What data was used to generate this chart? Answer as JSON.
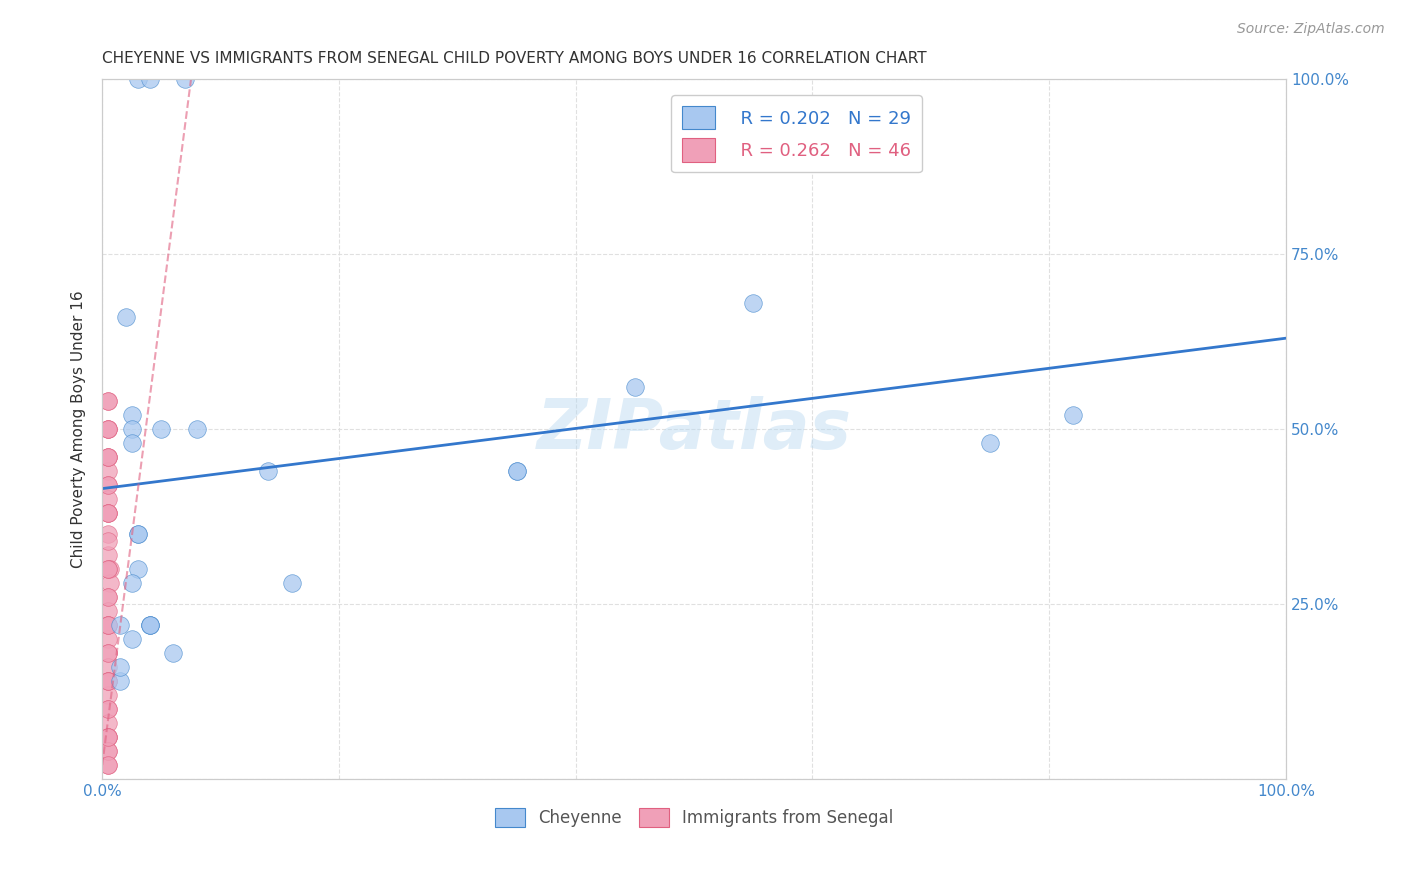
{
  "title": "CHEYENNE VS IMMIGRANTS FROM SENEGAL CHILD POVERTY AMONG BOYS UNDER 16 CORRELATION CHART",
  "source": "Source: ZipAtlas.com",
  "ylabel": "Child Poverty Among Boys Under 16",
  "xlim": [
    0,
    1.0
  ],
  "ylim": [
    0,
    1.0
  ],
  "legend_r1": "R = 0.202",
  "legend_n1": "N = 29",
  "legend_r2": "R = 0.262",
  "legend_n2": "N = 46",
  "cheyenne_color": "#a8c8f0",
  "senegal_color": "#f0a0b8",
  "cheyenne_edge_color": "#4488cc",
  "senegal_edge_color": "#e06080",
  "cheyenne_line_color": "#3377cc",
  "senegal_line_color": "#e06080",
  "watermark": "ZIPatlas",
  "cheyenne_scatter_x": [
    0.03,
    0.04,
    0.07,
    0.02,
    0.025,
    0.05,
    0.08,
    0.14,
    0.35,
    0.35,
    0.55,
    0.45,
    0.75,
    0.82,
    0.03,
    0.03,
    0.025,
    0.04,
    0.16,
    0.025,
    0.06,
    0.015,
    0.04,
    0.04,
    0.015,
    0.025,
    0.025,
    0.03,
    0.015
  ],
  "cheyenne_scatter_y": [
    1.0,
    1.0,
    1.0,
    0.66,
    0.52,
    0.5,
    0.5,
    0.44,
    0.44,
    0.44,
    0.68,
    0.56,
    0.48,
    0.52,
    0.35,
    0.3,
    0.28,
    0.22,
    0.28,
    0.2,
    0.18,
    0.14,
    0.22,
    0.22,
    0.16,
    0.5,
    0.48,
    0.35,
    0.22
  ],
  "senegal_scatter_x": [
    0.005,
    0.005,
    0.005,
    0.005,
    0.005,
    0.005,
    0.005,
    0.005,
    0.005,
    0.007,
    0.007,
    0.005,
    0.005,
    0.005,
    0.005,
    0.005,
    0.005,
    0.005,
    0.005,
    0.005,
    0.005,
    0.005,
    0.005,
    0.005,
    0.005,
    0.005,
    0.005,
    0.005,
    0.005,
    0.005,
    0.005,
    0.005,
    0.005,
    0.005,
    0.005,
    0.005,
    0.005,
    0.005,
    0.005,
    0.005,
    0.005,
    0.005,
    0.005,
    0.005,
    0.005,
    0.005
  ],
  "senegal_scatter_y": [
    0.54,
    0.5,
    0.46,
    0.44,
    0.42,
    0.4,
    0.38,
    0.35,
    0.32,
    0.3,
    0.28,
    0.26,
    0.24,
    0.22,
    0.2,
    0.18,
    0.16,
    0.14,
    0.12,
    0.1,
    0.08,
    0.06,
    0.04,
    0.02,
    0.5,
    0.46,
    0.42,
    0.38,
    0.34,
    0.3,
    0.26,
    0.22,
    0.18,
    0.14,
    0.1,
    0.06,
    0.04,
    0.02,
    0.54,
    0.5,
    0.46,
    0.38,
    0.3,
    0.22,
    0.14,
    0.06
  ],
  "cheyenne_trendline_x": [
    0.0,
    1.0
  ],
  "cheyenne_trendline_y": [
    0.415,
    0.63
  ],
  "senegal_trendline_x": [
    0.0,
    0.075
  ],
  "senegal_trendline_y": [
    0.02,
    1.0
  ],
  "background_color": "#ffffff",
  "grid_color": "#dddddd",
  "title_fontsize": 11,
  "axis_label_fontsize": 11,
  "tick_fontsize": 11,
  "source_fontsize": 10
}
